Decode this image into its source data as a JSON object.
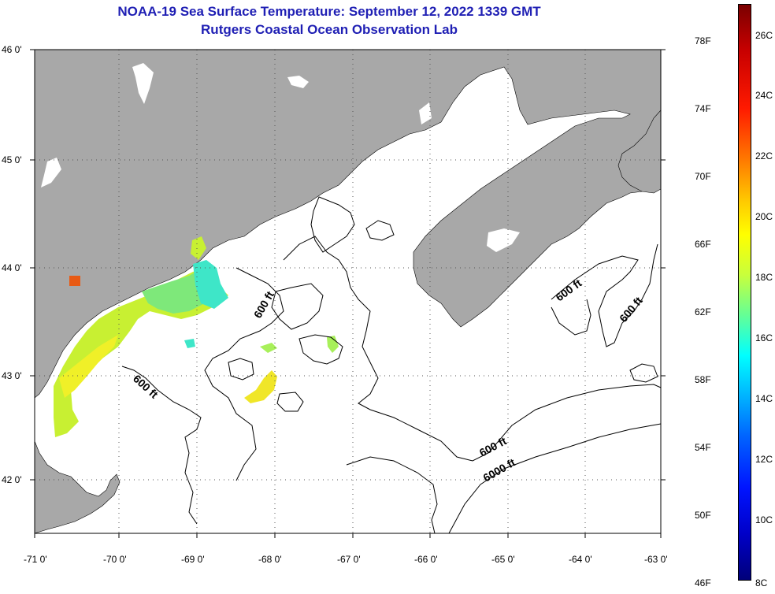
{
  "title_line1": "NOAA-19 Sea Surface Temperature:  September 12, 2022 1339 GMT",
  "title_line2": "Rutgers Coastal Ocean Observation Lab",
  "lat_labels": [
    "46 0'",
    "45 0'",
    "44 0'",
    "43 0'",
    "42 0'"
  ],
  "lon_labels": [
    "-71 0'",
    "-70 0'",
    "-69 0'",
    "-68 0'",
    "-67 0'",
    "-66 0'",
    "-65 0'",
    "-64 0'",
    "-63 0'"
  ],
  "depth_labels": [
    "600 ft",
    "600 ft",
    "600 ft",
    "600 ft",
    "600 ft",
    "6000 ft"
  ],
  "colorbar": {
    "fahrenheit": [
      "78F",
      "74F",
      "70F",
      "66F",
      "62F",
      "58F",
      "54F",
      "50F",
      "46F"
    ],
    "celsius": [
      "26C",
      "24C",
      "22C",
      "20C",
      "18C",
      "16C",
      "14C",
      "12C",
      "10C",
      "8C"
    ]
  },
  "colors": {
    "land": "#a8a8a8",
    "title": "#1f1fb4",
    "ocean": "#ffffff"
  }
}
